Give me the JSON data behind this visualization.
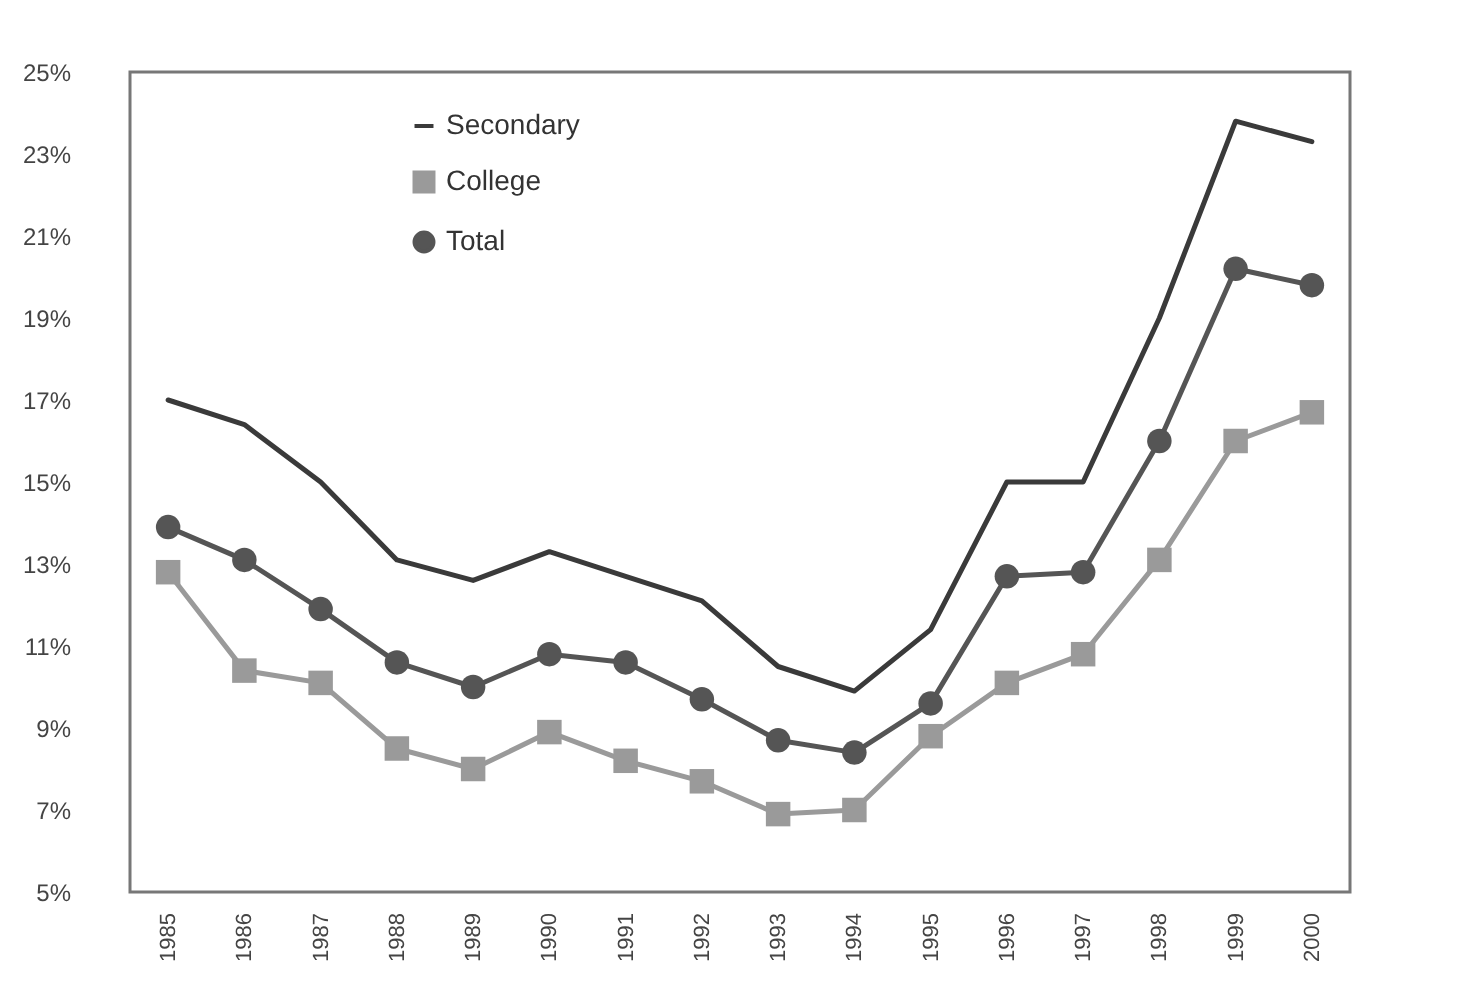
{
  "chart_data": {
    "type": "line",
    "categories": [
      "1985",
      "1986",
      "1987",
      "1988",
      "1989",
      "1990",
      "1991",
      "1992",
      "1993",
      "1994",
      "1995",
      "1996",
      "1997",
      "1998",
      "1999",
      "2000"
    ],
    "series": [
      {
        "name": "Secondary",
        "color": "#3a3a3a",
        "marker": "none",
        "values": [
          17.0,
          16.4,
          15.0,
          13.1,
          12.6,
          13.3,
          12.7,
          12.1,
          10.5,
          9.9,
          11.4,
          15.0,
          15.0,
          19.0,
          23.8,
          23.3
        ]
      },
      {
        "name": "College",
        "color": "#9a9a9a",
        "marker": "square",
        "values": [
          12.8,
          10.4,
          10.1,
          8.5,
          8.0,
          8.9,
          8.2,
          7.7,
          6.9,
          7.0,
          8.8,
          10.1,
          10.8,
          13.1,
          16.0,
          16.7
        ]
      },
      {
        "name": "Total",
        "color": "#555555",
        "marker": "circle",
        "values": [
          13.9,
          13.1,
          11.9,
          10.6,
          10.0,
          10.8,
          10.6,
          9.7,
          8.7,
          8.4,
          9.6,
          12.7,
          12.8,
          16.0,
          20.2,
          19.8
        ]
      }
    ],
    "ylim": [
      5,
      25
    ],
    "yticks": [
      {
        "value": 5,
        "label": "5%"
      },
      {
        "value": 7,
        "label": "7%"
      },
      {
        "value": 9,
        "label": "9%"
      },
      {
        "value": 11,
        "label": "11%"
      },
      {
        "value": 13,
        "label": "13%"
      },
      {
        "value": 15,
        "label": "15%"
      },
      {
        "value": 17,
        "label": "17%"
      },
      {
        "value": 19,
        "label": "19%"
      },
      {
        "value": 21,
        "label": "21%"
      },
      {
        "value": 23,
        "label": "23%"
      },
      {
        "value": 25,
        "label": "25%"
      }
    ],
    "grid": false,
    "legend": "top left"
  }
}
